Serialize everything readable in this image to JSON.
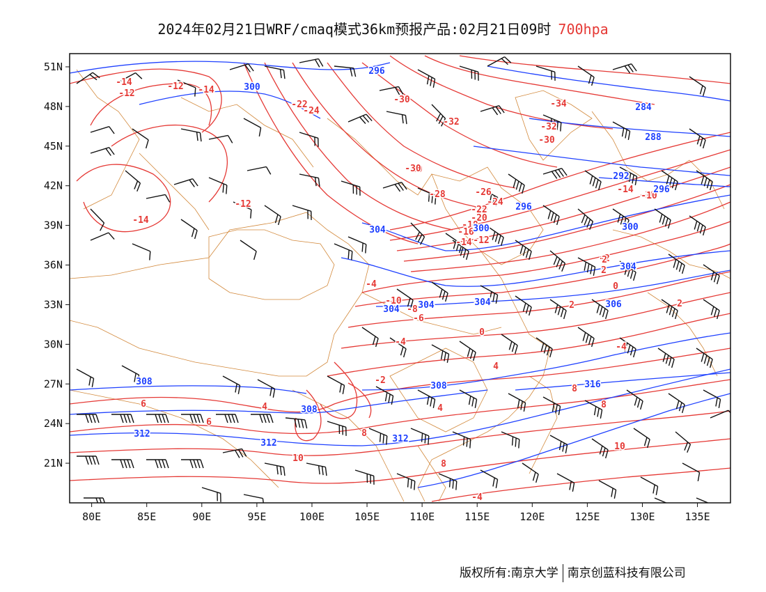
{
  "title": {
    "main": "2024年02月21日WRF/cmaq模式36km预报产品:02月21日09时",
    "level": "700hpa"
  },
  "map": {
    "lon_ticks": [
      "80E",
      "85E",
      "90E",
      "95E",
      "100E",
      "105E",
      "110E",
      "115E",
      "120E",
      "125E",
      "130E",
      "135E"
    ],
    "lat_ticks": [
      "51N",
      "48N",
      "45N",
      "42N",
      "39N",
      "36N",
      "33N",
      "30N",
      "27N",
      "24N",
      "21N"
    ],
    "lon_values": [
      80,
      85,
      90,
      95,
      100,
      105,
      110,
      115,
      120,
      125,
      130,
      135
    ],
    "lat_values": [
      51,
      48,
      45,
      42,
      39,
      36,
      33,
      30,
      27,
      24,
      21
    ],
    "extent": {
      "lon": [
        78,
        138
      ],
      "lat": [
        18,
        52
      ]
    },
    "colors": {
      "temperature": "#e53935",
      "geopotential": "#1e40ff",
      "boundary": "#d2883a",
      "wind": "#111111"
    },
    "temperature_labels": [
      "-14",
      "-12",
      "-12",
      "-14",
      "-22",
      "-24",
      "-30",
      "-30",
      "-32",
      "-34",
      "-32",
      "-30",
      "-30",
      "-28",
      "-26",
      "-24",
      "-22",
      "-20",
      "-18",
      "-16",
      "-14",
      "-12",
      "-10",
      "-12",
      "-14",
      "-14",
      "-10",
      "-10",
      "-8",
      "-6",
      "-4",
      "-2",
      "-4",
      "0",
      "-2",
      "2",
      "0",
      "2",
      "2",
      "-4",
      "4",
      "4",
      "4",
      "6",
      "6",
      "8",
      "8",
      "8",
      "8",
      "10",
      "10",
      "-4",
      "2"
    ],
    "geopotential_labels": [
      "296",
      "300",
      "284",
      "288",
      "292",
      "296",
      "296",
      "300",
      "304",
      "300",
      "304",
      "304",
      "304",
      "304",
      "306",
      "308",
      "308",
      "308",
      "312",
      "312",
      "312",
      "316"
    ]
  },
  "footer": {
    "left": "版权所有:南京大学",
    "right": "南京创蓝科技有限公司"
  }
}
